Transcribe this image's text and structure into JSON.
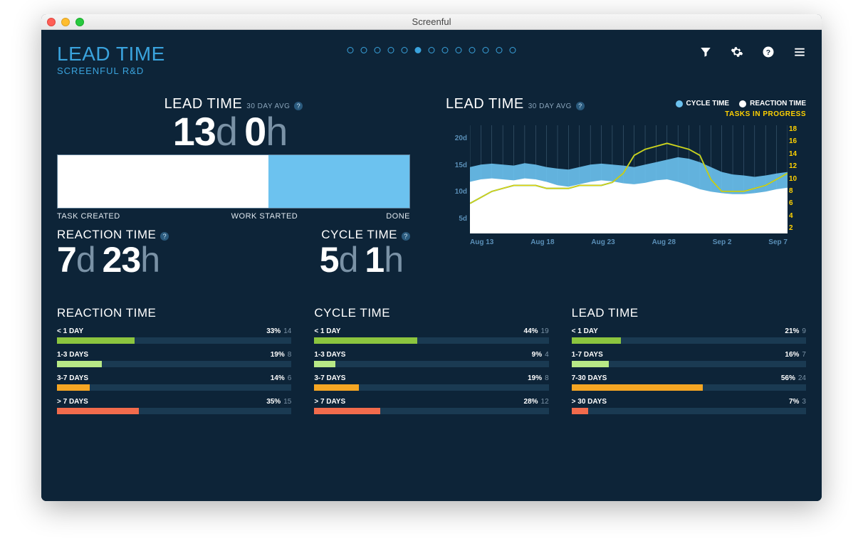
{
  "window_title": "Screenful",
  "colors": {
    "bg": "#0d2438",
    "accent_blue": "#3aa3dd",
    "cycle_blue": "#6cc2ef",
    "white": "#ffffff",
    "yellow": "#ffd200",
    "track": "#1a3a52",
    "bar_green": "#8bc53f",
    "bar_lightgreen": "#b8e986",
    "bar_orange": "#f5a623",
    "bar_red": "#f16b4c",
    "task_line": "#8bc53f"
  },
  "header": {
    "title": "LEAD TIME",
    "subtitle": "SCREENFUL R&D",
    "pager_total": 13,
    "pager_active": 5
  },
  "summary": {
    "title": "LEAD TIME",
    "avg_label": "30 DAY AVG",
    "lead_days": "13",
    "lead_hours": "0",
    "bar": {
      "reaction_pct": 60,
      "cycle_pct": 40,
      "reaction_color": "#ffffff",
      "cycle_color": "#6cc2ef",
      "labels": [
        "TASK CREATED",
        "WORK STARTED",
        "DONE"
      ]
    },
    "reaction": {
      "title": "REACTION TIME",
      "days": "7",
      "hours": "23"
    },
    "cycle": {
      "title": "CYCLE TIME",
      "days": "5",
      "hours": "1"
    }
  },
  "chart": {
    "title": "LEAD TIME",
    "avg_label": "30 DAY AVG",
    "legend": [
      {
        "label": "CYCLE TIME",
        "color": "#6cc2ef"
      },
      {
        "label": "REACTION TIME",
        "color": "#ffffff"
      }
    ],
    "tasks_label": "TASKS IN PROGRESS",
    "y_left": [
      "5d",
      "10d",
      "15d",
      "20d"
    ],
    "y_right": [
      "2",
      "4",
      "6",
      "8",
      "10",
      "12",
      "14",
      "16",
      "18"
    ],
    "x_labels": [
      "Aug 13",
      "Aug 18",
      "Aug 23",
      "Aug 28",
      "Sep 2",
      "Sep 7"
    ],
    "grid_verticals": 30,
    "lead_series": [
      13.5,
      14,
      14.2,
      14,
      13.8,
      14.3,
      14,
      13.5,
      13.2,
      13,
      13.5,
      14,
      14.2,
      14,
      13.8,
      13.5,
      14,
      14.5,
      15,
      15.5,
      15.2,
      14.5,
      13.5,
      12.5,
      12,
      11.8,
      11.5,
      11.8,
      12.2,
      12.5
    ],
    "reaction_series": [
      10.5,
      11,
      11.2,
      11,
      10.8,
      11.2,
      11,
      10.5,
      9.8,
      9.5,
      10,
      10.5,
      10.8,
      10.6,
      10.2,
      10,
      10.3,
      10.8,
      11,
      10.5,
      9.8,
      9,
      8.5,
      8.2,
      8,
      8,
      8.2,
      8.5,
      9,
      9.3
    ],
    "tasks_series": [
      5,
      6,
      7,
      7.5,
      8,
      8,
      8,
      7.5,
      7.5,
      7.5,
      8,
      8,
      8,
      8.5,
      10,
      13,
      14,
      14.5,
      15,
      14.5,
      14,
      13,
      9,
      7,
      7,
      7,
      7.5,
      8,
      9,
      10
    ],
    "y_max": 22,
    "tasks_max": 18
  },
  "distributions": [
    {
      "title": "REACTION TIME",
      "rows": [
        {
          "label": "< 1 DAY",
          "pct": 33,
          "count": 14,
          "color": "#8bc53f"
        },
        {
          "label": "1-3 DAYS",
          "pct": 19,
          "count": 8,
          "color": "#b8e986"
        },
        {
          "label": "3-7 DAYS",
          "pct": 14,
          "count": 6,
          "color": "#f5a623"
        },
        {
          "label": "> 7 DAYS",
          "pct": 35,
          "count": 15,
          "color": "#f16b4c"
        }
      ]
    },
    {
      "title": "CYCLE TIME",
      "rows": [
        {
          "label": "< 1 DAY",
          "pct": 44,
          "count": 19,
          "color": "#8bc53f"
        },
        {
          "label": "1-3 DAYS",
          "pct": 9,
          "count": 4,
          "color": "#b8e986"
        },
        {
          "label": "3-7 DAYS",
          "pct": 19,
          "count": 8,
          "color": "#f5a623"
        },
        {
          "label": "> 7 DAYS",
          "pct": 28,
          "count": 12,
          "color": "#f16b4c"
        }
      ]
    },
    {
      "title": "LEAD TIME",
      "rows": [
        {
          "label": "< 1 DAY",
          "pct": 21,
          "count": 9,
          "color": "#8bc53f"
        },
        {
          "label": "1-7 DAYS",
          "pct": 16,
          "count": 7,
          "color": "#b8e986"
        },
        {
          "label": "7-30 DAYS",
          "pct": 56,
          "count": 24,
          "color": "#f5a623"
        },
        {
          "label": "> 30 DAYS",
          "pct": 7,
          "count": 3,
          "color": "#f16b4c"
        }
      ]
    }
  ]
}
